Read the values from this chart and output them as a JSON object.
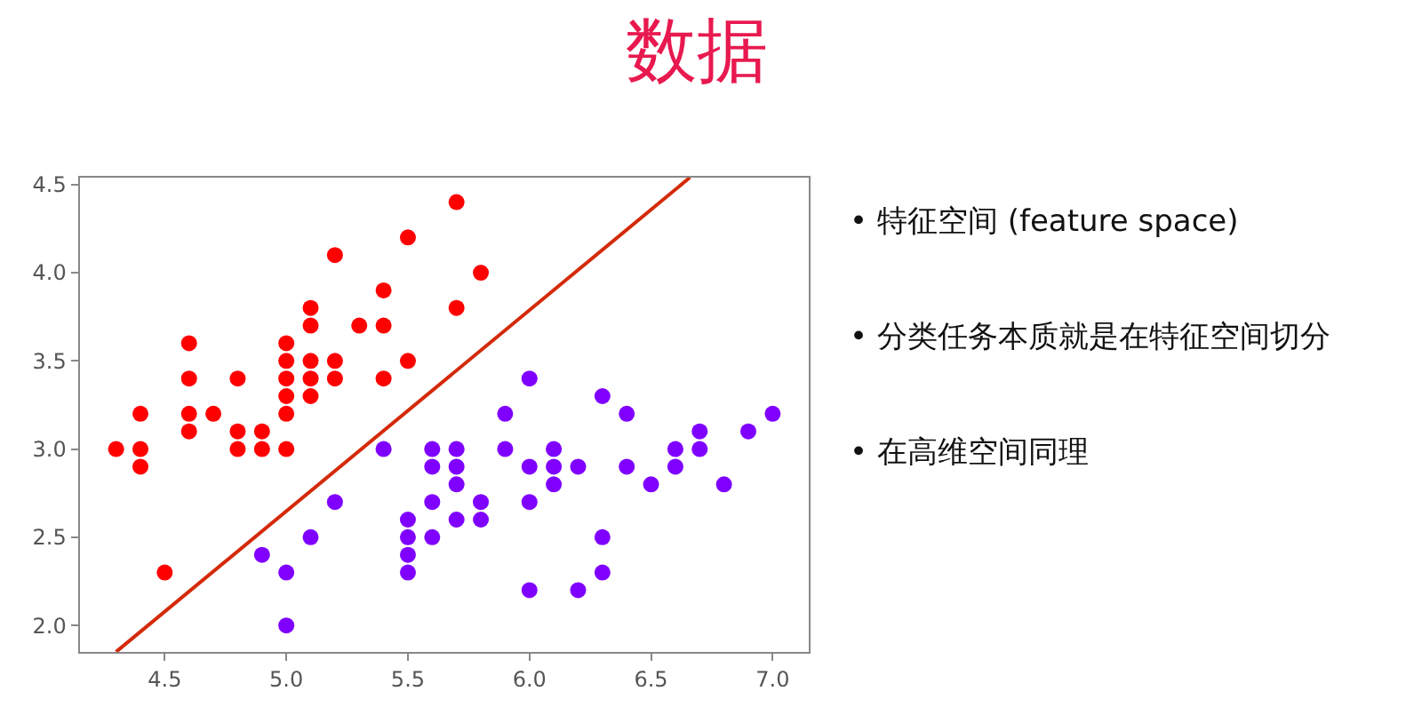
{
  "chart_data": {
    "type": "scatter",
    "title": "数据",
    "xlim": [
      4.15,
      7.15
    ],
    "xticks": [
      {
        "value": 4.5,
        "label": "4.5"
      },
      {
        "value": 5.0,
        "label": "5.0"
      },
      {
        "value": 5.5,
        "label": "5.5"
      },
      {
        "value": 6.0,
        "label": "6.0"
      },
      {
        "value": 6.5,
        "label": "6.5"
      },
      {
        "value": 7.0,
        "label": "7.0"
      }
    ],
    "ylim": [
      1.85,
      4.54
    ],
    "yticks": [
      {
        "value": 2.0,
        "label": "2.0"
      },
      {
        "value": 2.5,
        "label": "2.5"
      },
      {
        "value": 3.0,
        "label": "3.0"
      },
      {
        "value": 3.5,
        "label": "3.5"
      },
      {
        "value": 4.0,
        "label": "4.0"
      },
      {
        "value": 4.5,
        "label": "4.5"
      }
    ],
    "marker": "circle",
    "series": [
      {
        "color": "#ff0000",
        "x": [
          4.3,
          4.4,
          4.4,
          4.4,
          4.5,
          4.6,
          4.6,
          4.6,
          4.6,
          4.7,
          4.8,
          4.8,
          4.8,
          4.9,
          4.9,
          5.0,
          5.0,
          5.0,
          5.0,
          5.0,
          5.0,
          5.1,
          5.1,
          5.1,
          5.1,
          5.1,
          5.2,
          5.2,
          5.2,
          5.3,
          5.4,
          5.4,
          5.4,
          5.5,
          5.5,
          5.7,
          5.7,
          5.8
        ],
        "values": [
          3.0,
          3.2,
          3.0,
          2.9,
          2.3,
          3.6,
          3.4,
          3.2,
          3.1,
          3.2,
          3.4,
          3.1,
          3.0,
          3.1,
          3.0,
          3.6,
          3.5,
          3.4,
          3.3,
          3.2,
          3.0,
          3.8,
          3.7,
          3.5,
          3.4,
          3.3,
          4.1,
          3.5,
          3.4,
          3.7,
          3.9,
          3.7,
          3.4,
          4.2,
          3.5,
          4.4,
          3.8,
          4.0
        ]
      },
      {
        "color": "#7f00ff",
        "x": [
          5.4,
          5.2,
          5.1,
          4.9,
          5.0,
          5.0,
          5.5,
          5.5,
          5.5,
          5.5,
          5.6,
          5.6,
          5.6,
          5.6,
          5.7,
          5.7,
          5.7,
          5.7,
          6.0,
          6.3,
          5.9,
          6.4,
          7.0,
          6.7,
          6.9,
          5.9,
          6.1,
          6.6,
          6.7,
          6.0,
          6.1,
          6.2,
          6.4,
          6.6,
          6.1,
          6.5,
          6.8,
          5.8,
          6.0,
          5.8,
          6.3,
          6.3,
          6.0,
          6.2
        ],
        "values": [
          3.0,
          2.7,
          2.5,
          2.4,
          2.3,
          2.0,
          2.6,
          2.5,
          2.4,
          2.3,
          3.0,
          2.9,
          2.7,
          2.5,
          3.0,
          2.9,
          2.8,
          2.6,
          3.4,
          3.3,
          3.2,
          3.2,
          3.2,
          3.1,
          3.1,
          3.0,
          3.0,
          3.0,
          3.0,
          2.9,
          2.9,
          2.9,
          2.9,
          2.9,
          2.8,
          2.8,
          2.8,
          2.7,
          2.7,
          2.6,
          2.5,
          2.3,
          2.2,
          2.2
        ]
      },
      {
        "type": "line",
        "color": "#d42a0a",
        "line_style": "solid",
        "marker": "none",
        "x": [
          4.3,
          6.66
        ],
        "values": [
          1.85,
          4.54
        ]
      }
    ],
    "annotations": [
      "• 特征空间 (feature space)",
      "• 分类任务本质就是在特征空间切分",
      "• 在高维空间同理"
    ]
  }
}
